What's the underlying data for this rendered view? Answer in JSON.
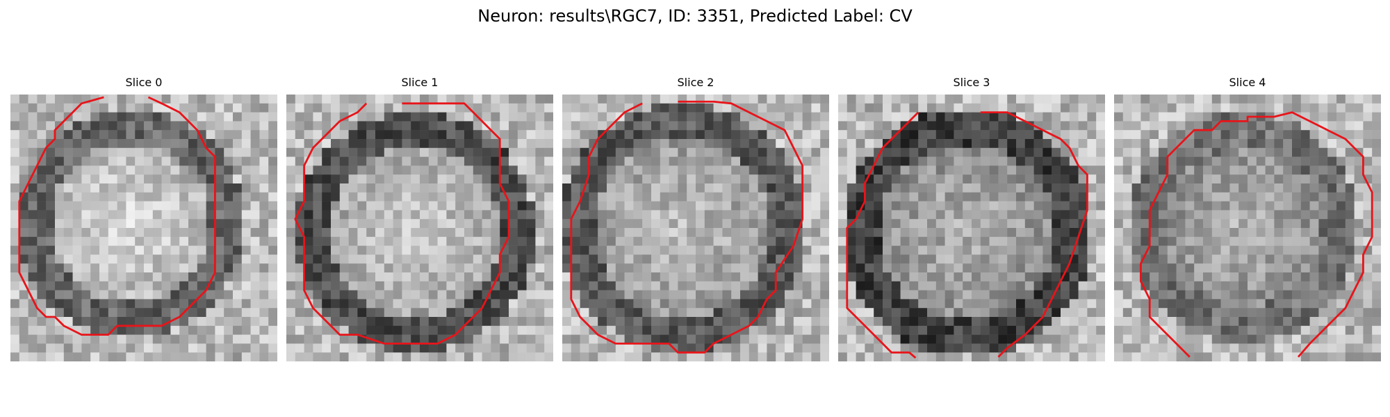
{
  "figure": {
    "title": "Neuron: results\\RGC7, ID: 3351, Predicted Label: CV"
  },
  "panels": [
    {
      "title": "Slice 0"
    },
    {
      "title": "Slice 1"
    },
    {
      "title": "Slice 2"
    },
    {
      "title": "Slice 3"
    },
    {
      "title": "Slice 4"
    }
  ],
  "colors": {
    "contour": "#e8141a",
    "background": "#ffffff"
  },
  "image": {
    "colormap": "grayscale",
    "grid_cells": 30
  }
}
